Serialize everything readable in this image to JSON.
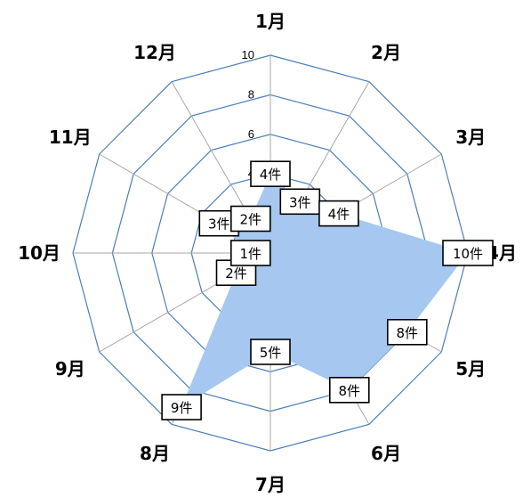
{
  "chart_data": {
    "type": "radar",
    "categories": [
      "1月",
      "2月",
      "3月",
      "4月",
      "5月",
      "6月",
      "7月",
      "8月",
      "9月",
      "10月",
      "11月",
      "12月"
    ],
    "values": [
      4,
      3,
      4,
      10,
      8,
      8,
      5,
      9,
      2,
      1,
      3,
      2
    ],
    "data_labels": [
      "4件",
      "3件",
      "4件",
      "10件",
      "8件",
      "8件",
      "5件",
      "9件",
      "2件",
      "1件",
      "3件",
      "2件"
    ],
    "ticks": [
      "0",
      "2",
      "4",
      "6",
      "8",
      "10"
    ],
    "rlim": [
      0,
      10
    ],
    "grid": true,
    "legend": "none",
    "colors": {
      "fill": "#a6c8f0",
      "grid_ring": "#4a7ebb",
      "grid_spoke": "#a6a6a6"
    }
  }
}
